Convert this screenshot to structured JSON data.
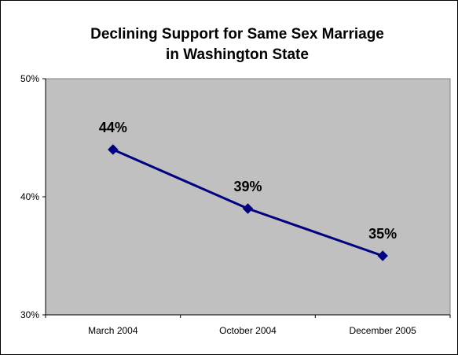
{
  "chart_data": {
    "type": "line",
    "title_lines": [
      "Declining Support for Same Sex Marriage",
      "in Washington State"
    ],
    "categories": [
      "March 2004",
      "October 2004",
      "December 2005"
    ],
    "series": [
      {
        "values": [
          44,
          39,
          35
        ],
        "labels": [
          "44%",
          "39%",
          "35%"
        ],
        "color": "#000080"
      }
    ],
    "y_ticks": [
      "50%",
      "40%",
      "30%"
    ],
    "ylim": [
      30,
      50
    ],
    "grid": false,
    "plot_background": "#c0c0c0",
    "marker": "diamond",
    "legend": "none"
  }
}
